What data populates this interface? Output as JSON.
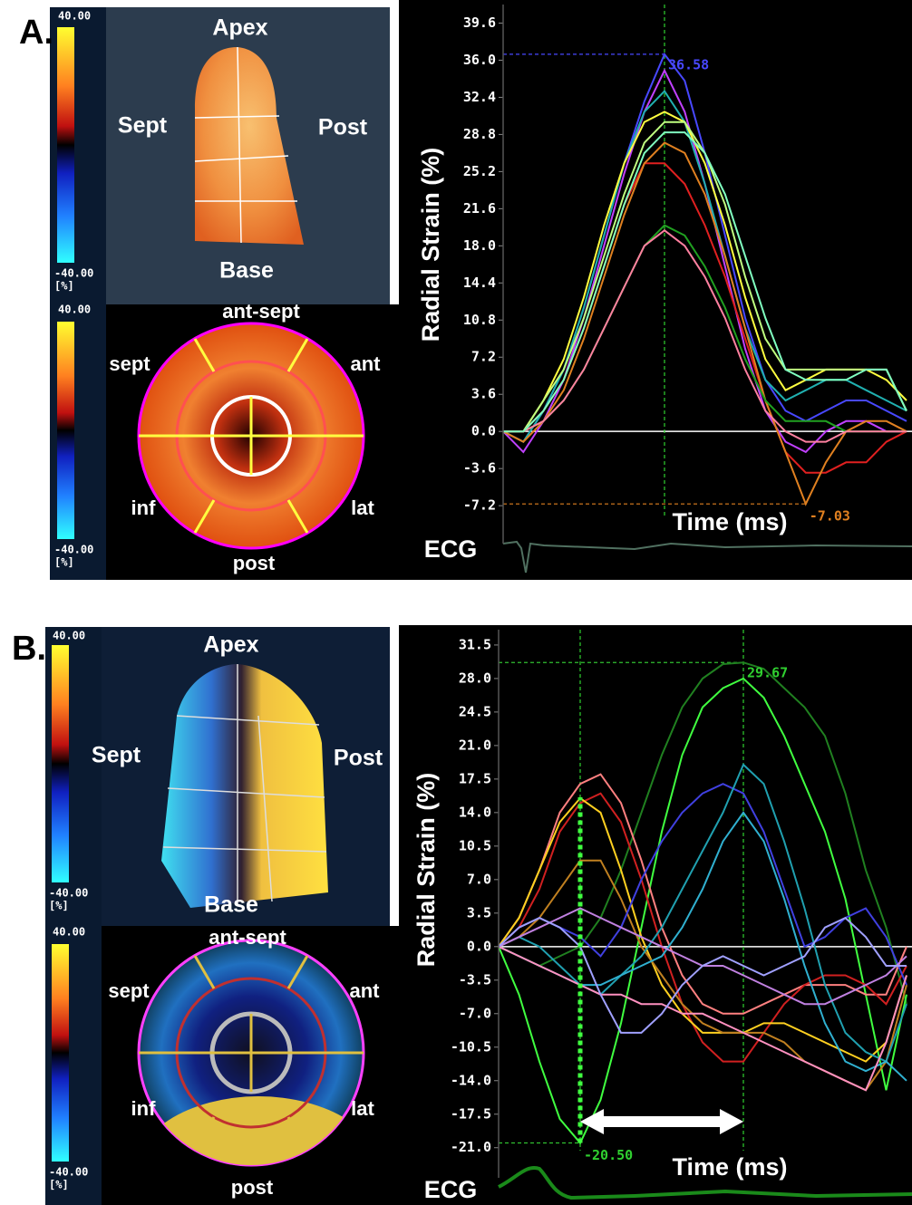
{
  "figure": {
    "panels": [
      {
        "label": "A.",
        "colorbars": [
          {
            "max": "40.00",
            "min": "-40.00",
            "unit": "[%]"
          },
          {
            "max": "40.00",
            "min": "-40.00",
            "unit": "[%]"
          }
        ],
        "long_axis_view": {
          "apex": "Apex",
          "sept": "Sept",
          "post": "Post",
          "base": "Base"
        },
        "bullseye": {
          "ant_sept": "ant-sept",
          "sept": "sept",
          "ant": "ant",
          "inf": "inf",
          "lat": "lat",
          "post": "post"
        }
      },
      {
        "label": "B.",
        "colorbars": [
          {
            "max": "40.00",
            "min": "-40.00",
            "unit": "[%]"
          },
          {
            "max": "40.00",
            "min": "-40.00",
            "unit": "[%]"
          }
        ],
        "long_axis_view": {
          "apex": "Apex",
          "sept": "Sept",
          "post": "Post",
          "base": "Base"
        },
        "bullseye": {
          "ant_sept": "ant-sept",
          "sept": "sept",
          "ant": "ant",
          "inf": "inf",
          "lat": "lat",
          "post": "post"
        }
      }
    ]
  },
  "chart_data": [
    {
      "type": "line",
      "y_label": "Radial Strain (%)",
      "x_label": "Time (ms)",
      "ecg_label": "ECG",
      "ylim": [
        -10.0,
        41.4
      ],
      "yticks": [
        {
          "value": 39.6,
          "label": "39.6"
        },
        {
          "value": 36.0,
          "label": "36.0"
        },
        {
          "value": 32.4,
          "label": "32.4"
        },
        {
          "value": 28.8,
          "label": "28.8"
        },
        {
          "value": 25.2,
          "label": "25.2"
        },
        {
          "value": 21.6,
          "label": "21.6"
        },
        {
          "value": 18.0,
          "label": "18.0"
        },
        {
          "value": 14.4,
          "label": "14.4"
        },
        {
          "value": 10.8,
          "label": "10.8"
        },
        {
          "value": 7.2,
          "label": "7.2"
        },
        {
          "value": 3.6,
          "label": "3.6"
        },
        {
          "value": 0,
          "label": "0.0"
        },
        {
          "value": -3.6,
          "label": "-3.6"
        },
        {
          "value": -7.2,
          "label": "-7.2"
        }
      ],
      "series": [
        {
          "color": "#4848ff",
          "values": [
            0,
            -1,
            2,
            6,
            12,
            19,
            26,
            32,
            36.58,
            34,
            27,
            19,
            11,
            5,
            2,
            1,
            2,
            3,
            3,
            2,
            1
          ]
        },
        {
          "color": "#c040ff",
          "values": [
            0,
            -2,
            1,
            5,
            11,
            18,
            25,
            31,
            35,
            31,
            24,
            16,
            8,
            2,
            -1,
            -2,
            0,
            1,
            1,
            0,
            0
          ]
        },
        {
          "color": "#20b0b0",
          "values": [
            0,
            -1,
            2,
            6,
            12,
            19,
            26,
            31,
            33,
            30,
            24,
            17,
            10,
            5,
            3,
            4,
            5,
            5,
            4,
            3,
            2
          ]
        },
        {
          "color": "#ffff40",
          "values": [
            0,
            0,
            3,
            7,
            13,
            20,
            26,
            30,
            31,
            30,
            26,
            20,
            13,
            7,
            4,
            5,
            6,
            6,
            6,
            5,
            3
          ]
        },
        {
          "color": "#c0ff80",
          "values": [
            0,
            0,
            3,
            6,
            11,
            17,
            23,
            28,
            30,
            30,
            27,
            22,
            15,
            9,
            6,
            6,
            6,
            6,
            6,
            6,
            2
          ]
        },
        {
          "color": "#e02020",
          "values": [
            0,
            0,
            2,
            5,
            10,
            16,
            22,
            26,
            26,
            24,
            20,
            15,
            9,
            3,
            -2,
            -4,
            -4,
            -3,
            -3,
            -1,
            0
          ]
        },
        {
          "color": "#e08020",
          "values": [
            0,
            -1,
            1,
            4,
            9,
            15,
            21,
            26,
            28,
            27,
            23,
            17,
            10,
            3,
            -2,
            -7.03,
            -3,
            0,
            1,
            1,
            0
          ]
        },
        {
          "color": "#20a020",
          "values": [
            0,
            0,
            1,
            3,
            6,
            10,
            14,
            18,
            20,
            19,
            16,
            12,
            7,
            3,
            1,
            1,
            1,
            0,
            0,
            0,
            0
          ]
        },
        {
          "color": "#ff80a0",
          "values": [
            0,
            0,
            1,
            3,
            6,
            10,
            14,
            18,
            19.5,
            18,
            15,
            11,
            6,
            2,
            0,
            -1,
            -1,
            0,
            0,
            0,
            0
          ]
        },
        {
          "color": "#80ffc0",
          "values": [
            0,
            0,
            2,
            5,
            10,
            16,
            22,
            27,
            29,
            29,
            27,
            23,
            17,
            11,
            6,
            5,
            5,
            5,
            6,
            6,
            2
          ]
        }
      ],
      "annotations": [
        {
          "value": 36.58,
          "label": "36.58"
        },
        {
          "value": -7.03,
          "label": "-7.03"
        }
      ]
    },
    {
      "type": "line",
      "y_label": "Radial Strain (%)",
      "x_label": "Time (ms)",
      "ecg_label": "ECG",
      "ylim": [
        -23.2,
        33.1
      ],
      "yticks": [
        {
          "value": 31.5,
          "label": "31.5"
        },
        {
          "value": 28.0,
          "label": "28.0"
        },
        {
          "value": 24.5,
          "label": "24.5"
        },
        {
          "value": 21.0,
          "label": "21.0"
        },
        {
          "value": 17.5,
          "label": "17.5"
        },
        {
          "value": 14.0,
          "label": "14.0"
        },
        {
          "value": 10.5,
          "label": "10.5"
        },
        {
          "value": 7.0,
          "label": "7.0"
        },
        {
          "value": 3.5,
          "label": "3.5"
        },
        {
          "value": 0,
          "label": "0.0"
        },
        {
          "value": -3.5,
          "label": "-3.5"
        },
        {
          "value": -7.0,
          "label": "-7.0"
        },
        {
          "value": -10.5,
          "label": "-10.5"
        },
        {
          "value": -14.0,
          "label": "-14.0"
        },
        {
          "value": -17.5,
          "label": "-17.5"
        },
        {
          "value": -21.0,
          "label": "-21.0"
        }
      ],
      "series": [
        {
          "color": "#208020",
          "values": [
            0,
            -1,
            -2,
            -1,
            0,
            3,
            8,
            14,
            20,
            25,
            28,
            29.5,
            29.67,
            29,
            27,
            25,
            22,
            16,
            8,
            2,
            -6
          ]
        },
        {
          "color": "#40ff40",
          "values": [
            0,
            -5,
            -12,
            -18,
            -20.5,
            -16,
            -8,
            2,
            12,
            20,
            25,
            27,
            28,
            26,
            22,
            17,
            12,
            5,
            -5,
            -15,
            -5
          ]
        },
        {
          "color": "#ff8080",
          "values": [
            0,
            3,
            8,
            14,
            17,
            18,
            15,
            9,
            2,
            -3,
            -6,
            -7,
            -7,
            -6,
            -5,
            -4,
            -4,
            -4,
            -5,
            -5,
            0
          ]
        },
        {
          "color": "#d02020",
          "values": [
            0,
            2,
            6,
            12,
            15,
            16,
            13,
            7,
            0,
            -6,
            -10,
            -12,
            -12,
            -9,
            -6,
            -4,
            -3,
            -3,
            -4,
            -6,
            -2
          ]
        },
        {
          "color": "#ffd020",
          "values": [
            0,
            3,
            8,
            13,
            15.5,
            14,
            8,
            1,
            -4,
            -7,
            -9,
            -9,
            -9,
            -8,
            -8,
            -9,
            -10,
            -11,
            -12,
            -10,
            -3
          ]
        },
        {
          "color": "#c08020",
          "values": [
            0,
            1,
            3,
            6,
            9,
            9,
            5,
            0,
            -3,
            -6,
            -8,
            -9,
            -9,
            -9,
            -10,
            -12,
            -13,
            -14,
            -15,
            -12,
            -4
          ]
        },
        {
          "color": "#4040e0",
          "values": [
            0,
            2,
            3,
            2,
            1,
            -1,
            2,
            7,
            11,
            14,
            16,
            17,
            16,
            12,
            6,
            0,
            1,
            3,
            4,
            1,
            -4
          ]
        },
        {
          "color": "#20a0b0",
          "values": [
            0,
            1,
            0,
            -2,
            -4,
            -5,
            -3,
            -1,
            2,
            6,
            10,
            14,
            19,
            17,
            11,
            4,
            -4,
            -9,
            -11,
            -12,
            -6
          ]
        },
        {
          "color": "#30b0d0",
          "values": [
            0,
            -1,
            -2,
            -3,
            -4,
            -4,
            -3,
            -2,
            -1,
            2,
            6,
            11,
            14,
            11,
            5,
            -2,
            -8,
            -12,
            -13,
            -12,
            -14
          ]
        },
        {
          "color": "#ff90c0",
          "values": [
            0,
            -1,
            -2,
            -3,
            -4,
            -5,
            -5,
            -6,
            -6,
            -7,
            -7,
            -8,
            -9,
            -10,
            -11,
            -12,
            -13,
            -14,
            -15,
            -10,
            -3
          ]
        },
        {
          "color": "#c080e0",
          "values": [
            0,
            1,
            2,
            3,
            4,
            3,
            2,
            1,
            0,
            -1,
            -2,
            -2,
            -3,
            -4,
            -5,
            -6,
            -6,
            -5,
            -4,
            -3,
            -1
          ]
        },
        {
          "color": "#a0a0ff",
          "values": [
            0,
            2,
            3,
            2,
            0,
            -5,
            -9,
            -9,
            -7,
            -4,
            -2,
            -1,
            -2,
            -3,
            -2,
            -1,
            2,
            3,
            1,
            -2,
            -2
          ]
        }
      ],
      "annotations": [
        {
          "value": 29.67,
          "label": "29.67"
        },
        {
          "value": -20.5,
          "label": "-20.50"
        }
      ]
    }
  ]
}
